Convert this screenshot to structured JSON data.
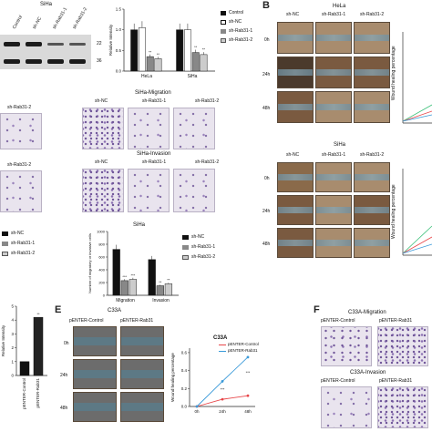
{
  "panel_letters": {
    "b": "B",
    "e": "E",
    "f": "F"
  },
  "panel_a_blot": {
    "cell_line": "SiHa",
    "lanes": [
      "Control",
      "sh-NC",
      "sh-Rab31-1",
      "sh-Rab31-2"
    ],
    "markers": [
      "22",
      "36"
    ]
  },
  "chart_data": [
    {
      "id": "rab31-knockdown-intensity",
      "type": "bar",
      "categories": [
        "HeLa",
        "SiHa"
      ],
      "series": [
        {
          "name": "Control",
          "values": [
            1.0,
            1.0
          ]
        },
        {
          "name": "sh-NC",
          "values": [
            1.05,
            1.0
          ]
        },
        {
          "name": "sh-Rab31-1",
          "values": [
            0.35,
            0.45
          ]
        },
        {
          "name": "sh-Rab31-2",
          "values": [
            0.3,
            0.4
          ]
        }
      ],
      "ylabel": "Relative Intensity",
      "ylim": [
        0,
        1.5
      ],
      "annotations": [
        "**",
        "**",
        "**",
        "**"
      ],
      "colors": [
        "#111111",
        "#ffffff",
        "#888888",
        "#cccccc"
      ]
    },
    {
      "id": "siha-migration-invasion",
      "type": "bar",
      "title": "SiHa",
      "categories": [
        "Migration",
        "Invasion"
      ],
      "series": [
        {
          "name": "sh-NC",
          "values": [
            720,
            560
          ]
        },
        {
          "name": "sh-Rab31-1",
          "values": [
            230,
            150
          ]
        },
        {
          "name": "sh-Rab31-2",
          "values": [
            250,
            180
          ]
        }
      ],
      "ylabel": "Number of migratory or invasive cells",
      "ylim": [
        0,
        1000
      ],
      "annotations": [
        "***",
        "***",
        "**",
        "**"
      ],
      "colors": [
        "#111111",
        "#888888",
        "#cccccc"
      ]
    },
    {
      "id": "rab31-overexpression-intensity",
      "type": "bar",
      "categories": [
        "pENTER-Control",
        "pENTER-Rab31"
      ],
      "values": [
        1.0,
        4.2
      ],
      "ylabel": "Relative Intensity",
      "ylim": [
        0,
        5
      ],
      "annotations": [
        "**"
      ]
    },
    {
      "id": "c33a-wound-healing",
      "type": "line",
      "title": "C33A",
      "x": [
        "0h",
        "24h",
        "48h"
      ],
      "series": [
        {
          "name": "pENTER-Control",
          "values": [
            0.0,
            0.08,
            0.12
          ],
          "color": "#e8474a"
        },
        {
          "name": "pENTER-Rab31",
          "values": [
            0.0,
            0.28,
            0.55
          ],
          "color": "#3a9ad9"
        }
      ],
      "ylabel": "Wound healing percentage",
      "ylim": [
        0,
        0.65
      ],
      "annotations": [
        "***",
        "***"
      ]
    }
  ],
  "panel_b": {
    "hela": {
      "title": "HeLa",
      "cols": [
        "sh-NC",
        "sh-Rab31-1",
        "sh-Rab31-2"
      ],
      "rows": [
        "0h",
        "24h",
        "48h"
      ]
    },
    "siha": {
      "title": "SiHa",
      "cols": [
        "sh-NC",
        "sh-Rab31-1",
        "sh-Rab31-2"
      ],
      "rows": [
        "0h",
        "24h",
        "48h"
      ]
    },
    "ylabel": "Wound healing percentage"
  },
  "panel_c": {
    "left_cols": [
      "sh-Rab31-2"
    ],
    "migration_title": "SiHa-Migration",
    "invasion_title": "SiHa-Invasion",
    "cols": [
      "sh-NC",
      "sh-Rab31-1",
      "sh-Rab31-2"
    ]
  },
  "panel_e": {
    "title": "C33A",
    "cols": [
      "pENTER-Control",
      "pENTER-Rab31"
    ],
    "rows": [
      "0h",
      "24h",
      "48h"
    ]
  },
  "panel_f": {
    "migration_title": "C33A-Migration",
    "invasion_title": "C33A-Invasion",
    "cols": [
      "pENTER-Control",
      "pENTER-Rab31"
    ]
  }
}
